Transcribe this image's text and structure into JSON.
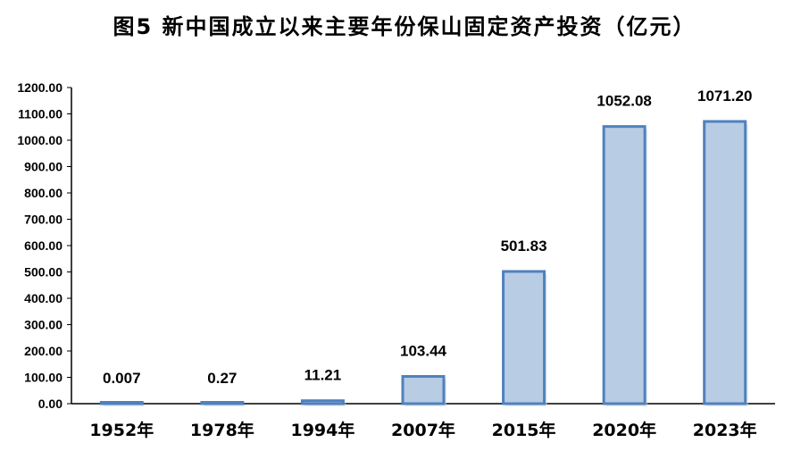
{
  "chart_data": {
    "type": "bar",
    "title": "图5   新中国成立以来主要年份保山固定资产投资（亿元）",
    "categories": [
      "1952年",
      "1978年",
      "1994年",
      "2007年",
      "2015年",
      "2020年",
      "2023年"
    ],
    "values": [
      0.007,
      0.27,
      11.21,
      103.44,
      501.83,
      1052.08,
      1071.2
    ],
    "data_labels": [
      "0.007",
      "0.27",
      "11.21",
      "103.44",
      "501.83",
      "1052.08",
      "1071.20"
    ],
    "y_ticks": [
      "0.00",
      "100.00",
      "200.00",
      "300.00",
      "400.00",
      "500.00",
      "600.00",
      "700.00",
      "800.00",
      "900.00",
      "1000.00",
      "1100.00",
      "1200.00"
    ],
    "ylim": [
      0,
      1200
    ],
    "xlabel": "",
    "ylabel": "",
    "grid": false,
    "legend": "none",
    "colors": {
      "bar_fill": "#b8cce4",
      "bar_stroke": "#4f81bd",
      "axis": "#000000"
    }
  }
}
